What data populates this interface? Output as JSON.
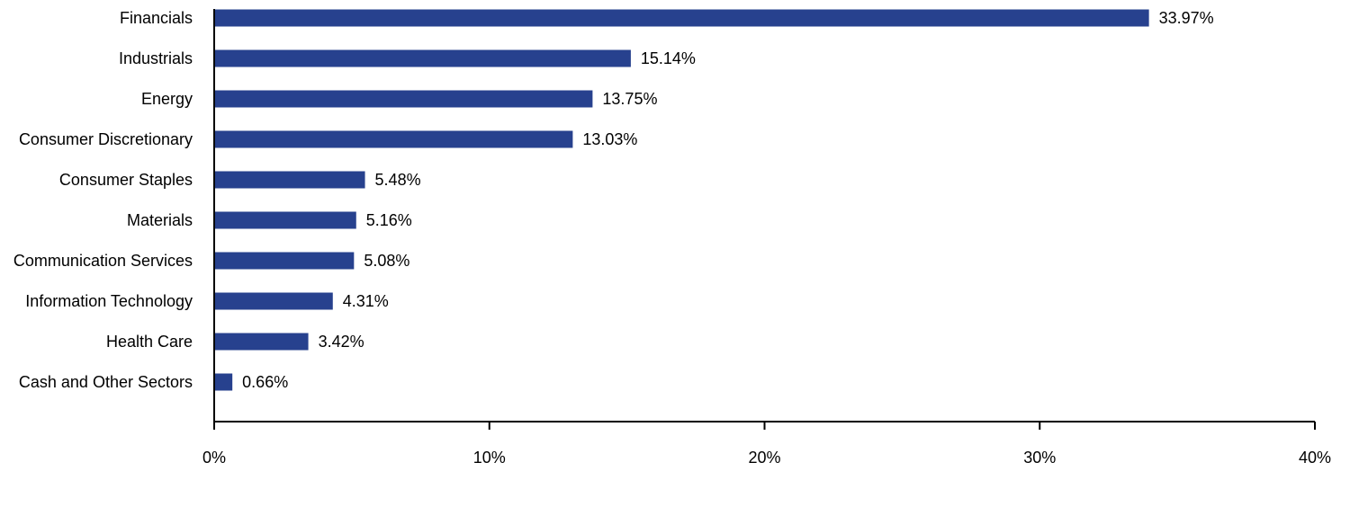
{
  "chart_data": {
    "type": "bar",
    "orientation": "horizontal",
    "categories": [
      "Financials",
      "Industrials",
      "Energy",
      "Consumer Discretionary",
      "Consumer Staples",
      "Materials",
      "Communication Services",
      "Information Technology",
      "Health Care",
      "Cash and Other Sectors"
    ],
    "values": [
      33.97,
      15.14,
      13.75,
      13.03,
      5.48,
      5.16,
      5.08,
      4.31,
      3.42,
      0.66
    ],
    "value_labels": [
      "33.97%",
      "15.14%",
      "13.75%",
      "13.03%",
      "5.48%",
      "5.16%",
      "5.08%",
      "4.31%",
      "3.42%",
      "0.66%"
    ],
    "xlim": [
      0,
      40
    ],
    "x_ticks": [
      0,
      10,
      20,
      30,
      40
    ],
    "x_tick_labels": [
      "0%",
      "10%",
      "20%",
      "30%",
      "40%"
    ],
    "title": "",
    "xlabel": "",
    "ylabel": "",
    "grid": false,
    "bar_color": "#27418E"
  }
}
